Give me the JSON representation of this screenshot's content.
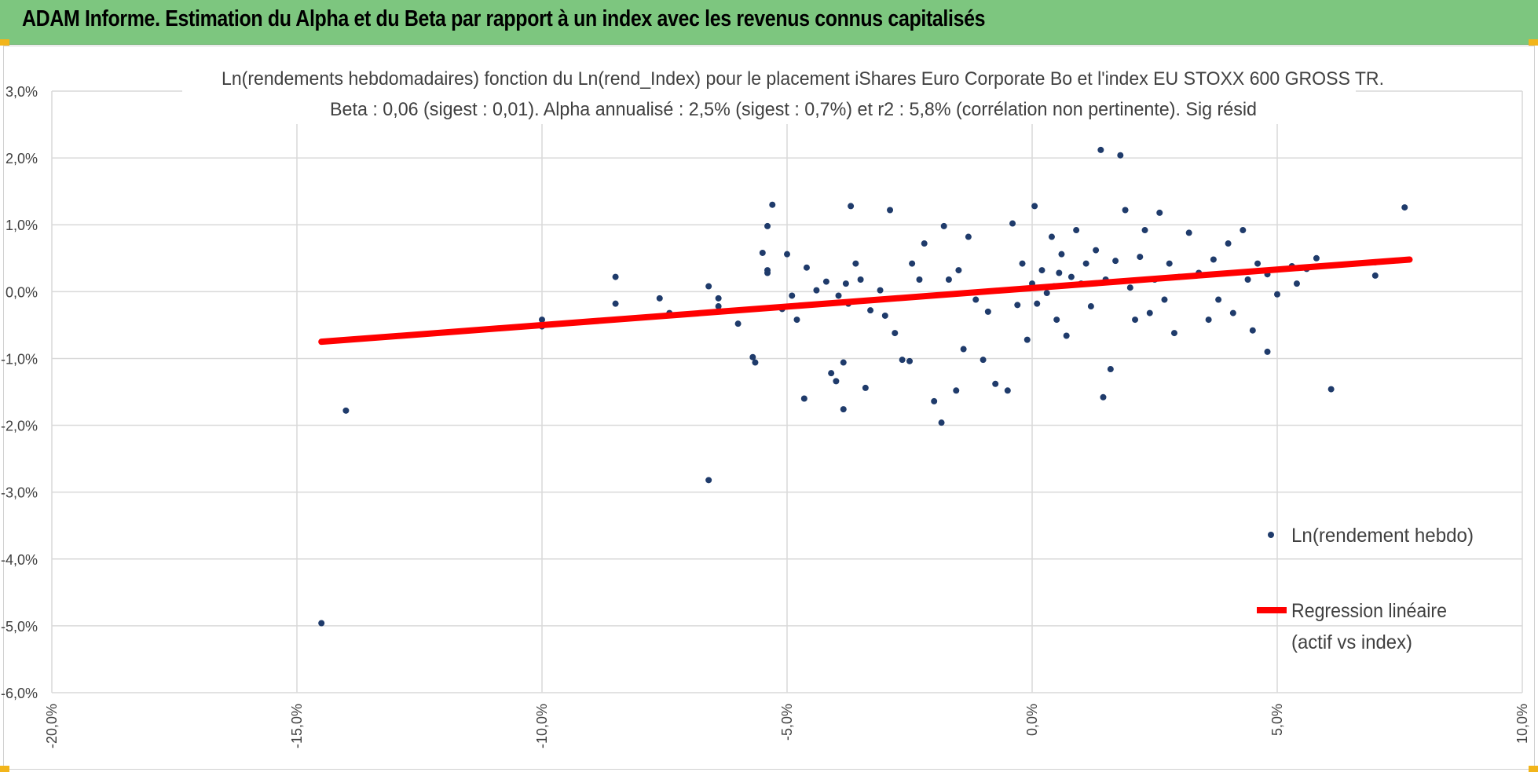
{
  "header": {
    "title": "ADAM Informe. Estimation du Alpha et du Beta par rapport à un index avec les revenus connus capitalisés"
  },
  "colors": {
    "header_bg": "#7dc67f",
    "points": "#1f3b6b",
    "regression": "#ff0000",
    "grid": "#d9d9d9",
    "corner_handles": "#f2b51b"
  },
  "chart_data": {
    "type": "scatter",
    "title": "Ln(rendements hebdomadaires) fonction du Ln(rend_Index) pour le placement iShares  Euro Corporate Bo et l'index EU STOXX  600 GROSS TR.",
    "subtitle": "Beta : 0,06 (sigest : 0,01).  Alpha annualisé : 2,5% (sigest : 0,7%) et r2 : 5,8% (corrélation non pertinente). Sig résid",
    "xlabel": "",
    "ylabel": "",
    "xlim": [
      -20,
      10
    ],
    "ylim": [
      -6,
      3
    ],
    "x_ticks": [
      "-20,0%",
      "-15,0%",
      "-10,0%",
      "-5,0%",
      "0,0%",
      "5,0%",
      "10,0%"
    ],
    "y_ticks": [
      "3,0%",
      "2,0%",
      "1,0%",
      "0,0%",
      "-1,0%",
      "-2,0%",
      "-3,0%",
      "-4,0%",
      "-5,0%",
      "-6,0%"
    ],
    "grid": true,
    "legend_position": "right",
    "legend": [
      "Ln(rendement hebdo)",
      "Regression linéaire",
      "(actif vs index)"
    ],
    "series": [
      {
        "name": "Ln(rendement hebdo)",
        "kind": "scatter",
        "points": [
          [
            -14.5,
            -4.96
          ],
          [
            -14.0,
            -1.78
          ],
          [
            -6.6,
            -2.82
          ],
          [
            -10.0,
            -0.42
          ],
          [
            -10.0,
            -0.52
          ],
          [
            -8.5,
            0.22
          ],
          [
            -8.5,
            -0.18
          ],
          [
            -7.6,
            -0.1
          ],
          [
            -7.4,
            -0.32
          ],
          [
            -6.6,
            0.08
          ],
          [
            -6.4,
            -0.1
          ],
          [
            -6.4,
            -0.22
          ],
          [
            -6.0,
            -0.48
          ],
          [
            -5.7,
            -0.98
          ],
          [
            -5.65,
            -1.06
          ],
          [
            -5.5,
            0.58
          ],
          [
            -5.4,
            0.98
          ],
          [
            -5.4,
            0.32
          ],
          [
            -5.4,
            0.28
          ],
          [
            -5.3,
            1.3
          ],
          [
            -5.1,
            -0.26
          ],
          [
            -5.0,
            0.56
          ],
          [
            -4.9,
            -0.06
          ],
          [
            -4.8,
            -0.42
          ],
          [
            -4.65,
            -1.6
          ],
          [
            -4.6,
            0.36
          ],
          [
            -4.4,
            0.02
          ],
          [
            -4.2,
            0.15
          ],
          [
            -4.1,
            -1.22
          ],
          [
            -4.0,
            -1.34
          ],
          [
            -3.95,
            -0.06
          ],
          [
            -3.85,
            -1.06
          ],
          [
            -3.85,
            -1.76
          ],
          [
            -3.8,
            0.12
          ],
          [
            -3.75,
            -0.18
          ],
          [
            -3.7,
            1.28
          ],
          [
            -3.6,
            0.42
          ],
          [
            -3.5,
            0.18
          ],
          [
            -3.4,
            -1.44
          ],
          [
            -3.3,
            -0.28
          ],
          [
            -3.1,
            0.02
          ],
          [
            -3.0,
            -0.36
          ],
          [
            -2.9,
            1.22
          ],
          [
            -2.8,
            -0.62
          ],
          [
            -2.65,
            -1.02
          ],
          [
            -2.5,
            -1.04
          ],
          [
            -2.45,
            0.42
          ],
          [
            -2.3,
            0.18
          ],
          [
            -2.2,
            0.72
          ],
          [
            -2.0,
            -1.64
          ],
          [
            -1.85,
            -1.96
          ],
          [
            -1.8,
            0.98
          ],
          [
            -1.7,
            0.18
          ],
          [
            -1.55,
            -1.48
          ],
          [
            -1.5,
            0.32
          ],
          [
            -1.4,
            -0.86
          ],
          [
            -1.3,
            0.82
          ],
          [
            -1.15,
            -0.12
          ],
          [
            -1.0,
            -1.02
          ],
          [
            -0.9,
            -0.3
          ],
          [
            -0.75,
            -1.38
          ],
          [
            -0.5,
            -1.48
          ],
          [
            -0.4,
            1.02
          ],
          [
            -0.3,
            -0.2
          ],
          [
            -0.2,
            0.42
          ],
          [
            -0.1,
            -0.72
          ],
          [
            0.0,
            0.12
          ],
          [
            0.05,
            1.28
          ],
          [
            0.1,
            -0.18
          ],
          [
            0.2,
            0.32
          ],
          [
            0.3,
            -0.02
          ],
          [
            0.4,
            0.82
          ],
          [
            0.45,
            0.08
          ],
          [
            0.5,
            -0.42
          ],
          [
            0.55,
            0.28
          ],
          [
            0.6,
            0.56
          ],
          [
            0.7,
            -0.66
          ],
          [
            0.8,
            0.22
          ],
          [
            0.9,
            0.92
          ],
          [
            1.0,
            0.12
          ],
          [
            1.1,
            0.42
          ],
          [
            1.2,
            -0.22
          ],
          [
            1.3,
            0.62
          ],
          [
            1.4,
            2.12
          ],
          [
            1.45,
            -1.58
          ],
          [
            1.5,
            0.18
          ],
          [
            1.6,
            -1.16
          ],
          [
            1.7,
            0.46
          ],
          [
            1.8,
            2.04
          ],
          [
            1.9,
            1.22
          ],
          [
            2.0,
            0.06
          ],
          [
            2.1,
            -0.42
          ],
          [
            2.2,
            0.52
          ],
          [
            2.3,
            0.92
          ],
          [
            2.4,
            -0.32
          ],
          [
            2.5,
            0.18
          ],
          [
            2.6,
            1.18
          ],
          [
            2.7,
            -0.12
          ],
          [
            2.8,
            0.42
          ],
          [
            2.9,
            -0.62
          ],
          [
            3.0,
            0.22
          ],
          [
            3.2,
            0.88
          ],
          [
            3.4,
            0.28
          ],
          [
            3.6,
            -0.42
          ],
          [
            3.7,
            0.48
          ],
          [
            3.8,
            -0.12
          ],
          [
            4.0,
            0.72
          ],
          [
            4.1,
            -0.32
          ],
          [
            4.3,
            0.92
          ],
          [
            4.4,
            0.18
          ],
          [
            4.5,
            -0.58
          ],
          [
            4.6,
            0.42
          ],
          [
            4.8,
            0.26
          ],
          [
            4.8,
            -0.9
          ],
          [
            5.0,
            -0.04
          ],
          [
            5.3,
            0.38
          ],
          [
            5.4,
            0.12
          ],
          [
            5.6,
            0.34
          ],
          [
            5.8,
            0.5
          ],
          [
            6.1,
            -1.46
          ],
          [
            7.0,
            0.24
          ],
          [
            7.0,
            0.44
          ],
          [
            7.6,
            1.26
          ]
        ]
      },
      {
        "name": "Regression linéaire (actif vs index)",
        "kind": "line",
        "points": [
          [
            -14.5,
            -0.75
          ],
          [
            7.7,
            0.48
          ]
        ]
      }
    ]
  }
}
